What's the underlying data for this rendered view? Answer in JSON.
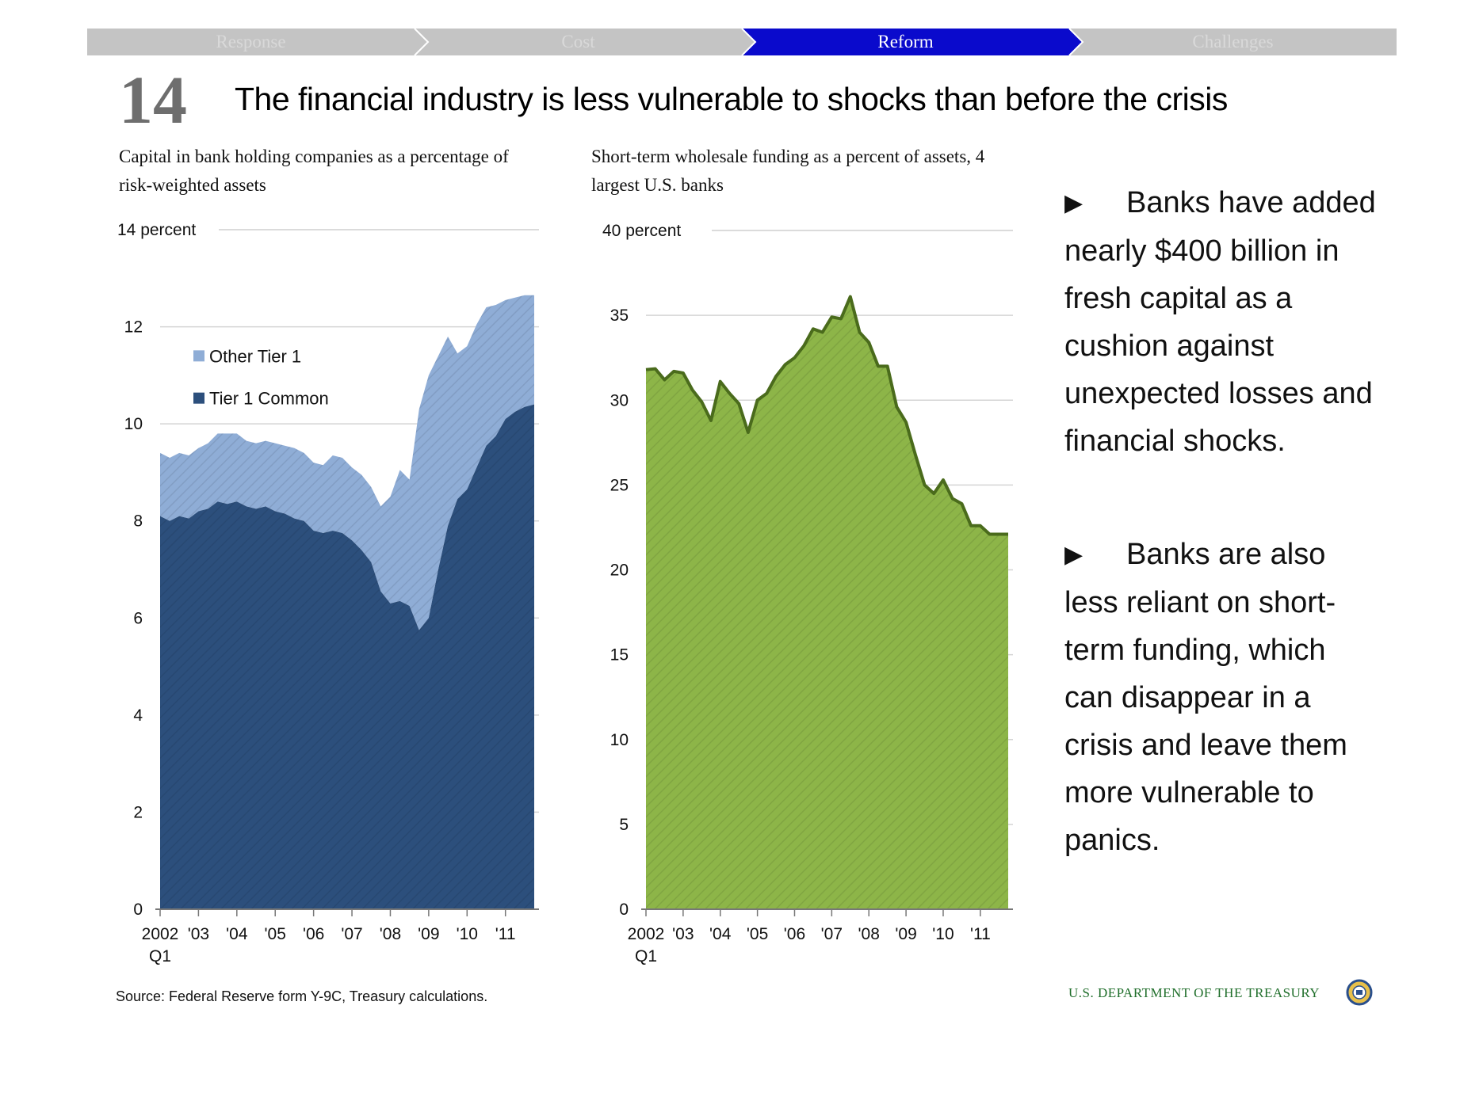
{
  "nav": {
    "tabs": [
      {
        "label": "Response",
        "active": false
      },
      {
        "label": "Cost",
        "active": false
      },
      {
        "label": "Reform",
        "active": true
      },
      {
        "label": "Challenges",
        "active": false
      }
    ],
    "colors": {
      "inactive_bg": "#c4c4c4",
      "inactive_text": "#d9d9d9",
      "active_bg": "#0a0acc",
      "active_text": "#ffffff"
    }
  },
  "slide": {
    "number": "14",
    "title": "The financial industry is less vulnerable to shocks than before the crisis"
  },
  "bullets": [
    {
      "arrow": "▶",
      "text": "Banks have added nearly  $400 billion in fresh capital as a cushion against unexpected losses and financial shocks."
    },
    {
      "arrow": "▶",
      "text": "Banks are also less reliant on short-term funding, which can disappear in a crisis and leave them more vulnerable to panics."
    }
  ],
  "footer": {
    "source": "Source: Federal Reserve form Y-9C, Treasury calculations.",
    "department": "U.S. DEPARTMENT OF THE TREASURY"
  },
  "chart_data": [
    {
      "type": "area",
      "stacked": true,
      "title": "Capital in bank holding companies as a percentage of risk-weighted assets",
      "unit_label": "14 percent",
      "ylim": [
        0,
        14
      ],
      "yticks": [
        0,
        2,
        4,
        6,
        8,
        10,
        12
      ],
      "xlim": [
        2002.0,
        2011.75
      ],
      "xticks": [
        {
          "x": 2002.0,
          "label": "2002",
          "sublabel": "Q1"
        },
        {
          "x": 2003.0,
          "label": "'03"
        },
        {
          "x": 2004.0,
          "label": "'04"
        },
        {
          "x": 2005.0,
          "label": "'05"
        },
        {
          "x": 2006.0,
          "label": "'06"
        },
        {
          "x": 2007.0,
          "label": "'07"
        },
        {
          "x": 2008.0,
          "label": "'08"
        },
        {
          "x": 2009.0,
          "label": "'09"
        },
        {
          "x": 2010.0,
          "label": "'10"
        },
        {
          "x": 2011.0,
          "label": "'11"
        }
      ],
      "grid": true,
      "legend_position": "top-left",
      "x": [
        2002.0,
        2002.25,
        2002.5,
        2002.75,
        2003.0,
        2003.25,
        2003.5,
        2003.75,
        2004.0,
        2004.25,
        2004.5,
        2004.75,
        2005.0,
        2005.25,
        2005.5,
        2005.75,
        2006.0,
        2006.25,
        2006.5,
        2006.75,
        2007.0,
        2007.25,
        2007.5,
        2007.75,
        2008.0,
        2008.25,
        2008.5,
        2008.75,
        2009.0,
        2009.25,
        2009.5,
        2009.75,
        2010.0,
        2010.25,
        2010.5,
        2010.75,
        2011.0,
        2011.25,
        2011.5,
        2011.75
      ],
      "series": [
        {
          "name": "Tier 1 Common",
          "color": "#2c4f7c",
          "values": [
            8.1,
            8.0,
            8.1,
            8.05,
            8.2,
            8.25,
            8.4,
            8.35,
            8.4,
            8.3,
            8.25,
            8.3,
            8.2,
            8.15,
            8.05,
            8.0,
            7.8,
            7.75,
            7.8,
            7.75,
            7.6,
            7.4,
            7.15,
            6.55,
            6.3,
            6.35,
            6.25,
            5.75,
            6.0,
            7.0,
            7.9,
            8.45,
            8.65,
            9.1,
            9.55,
            9.75,
            10.1,
            10.25,
            10.35,
            10.4
          ]
        },
        {
          "name": "Other Tier 1",
          "color": "#8fadd6",
          "totals": [
            9.4,
            9.3,
            9.4,
            9.35,
            9.5,
            9.6,
            9.8,
            9.8,
            9.8,
            9.65,
            9.6,
            9.65,
            9.6,
            9.55,
            9.5,
            9.4,
            9.2,
            9.15,
            9.35,
            9.3,
            9.1,
            8.95,
            8.7,
            8.3,
            8.5,
            9.05,
            8.85,
            10.3,
            11.0,
            11.4,
            11.8,
            11.45,
            11.6,
            12.05,
            12.4,
            12.45,
            12.55,
            12.6,
            12.65,
            12.65
          ]
        }
      ]
    },
    {
      "type": "area",
      "title": "Short-term wholesale funding as a percent of assets, 4 largest U.S. banks",
      "unit_label": "40 percent",
      "ylim": [
        0,
        40
      ],
      "yticks": [
        0,
        5,
        10,
        15,
        20,
        25,
        30,
        35
      ],
      "xlim": [
        2002.0,
        2011.75
      ],
      "xticks": [
        {
          "x": 2002.0,
          "label": "2002",
          "sublabel": "Q1"
        },
        {
          "x": 2003.0,
          "label": "'03"
        },
        {
          "x": 2004.0,
          "label": "'04"
        },
        {
          "x": 2005.0,
          "label": "'05"
        },
        {
          "x": 2006.0,
          "label": "'06"
        },
        {
          "x": 2007.0,
          "label": "'07"
        },
        {
          "x": 2008.0,
          "label": "'08"
        },
        {
          "x": 2009.0,
          "label": "'09"
        },
        {
          "x": 2010.0,
          "label": "'10"
        },
        {
          "x": 2011.0,
          "label": "'11"
        }
      ],
      "grid": true,
      "fill_color": "#8db548",
      "line_color": "#4a6b1c",
      "x": [
        2002.0,
        2002.25,
        2002.5,
        2002.75,
        2003.0,
        2003.25,
        2003.5,
        2003.75,
        2004.0,
        2004.25,
        2004.5,
        2004.75,
        2005.0,
        2005.25,
        2005.5,
        2005.75,
        2006.0,
        2006.25,
        2006.5,
        2006.75,
        2007.0,
        2007.25,
        2007.5,
        2007.75,
        2008.0,
        2008.25,
        2008.5,
        2008.75,
        2009.0,
        2009.25,
        2009.5,
        2009.75,
        2010.0,
        2010.25,
        2010.5,
        2010.75,
        2011.0,
        2011.25,
        2011.5,
        2011.75
      ],
      "values": [
        31.8,
        31.85,
        31.2,
        31.7,
        31.6,
        30.6,
        29.9,
        28.8,
        31.1,
        30.4,
        29.8,
        28.1,
        30.0,
        30.4,
        31.4,
        32.1,
        32.5,
        33.2,
        34.2,
        34.0,
        34.9,
        34.8,
        36.1,
        34.0,
        33.4,
        32.0,
        32.0,
        29.6,
        28.7,
        26.8,
        25.0,
        24.5,
        25.3,
        24.2,
        23.9,
        22.6,
        22.6,
        22.1,
        22.1,
        22.1
      ]
    }
  ]
}
